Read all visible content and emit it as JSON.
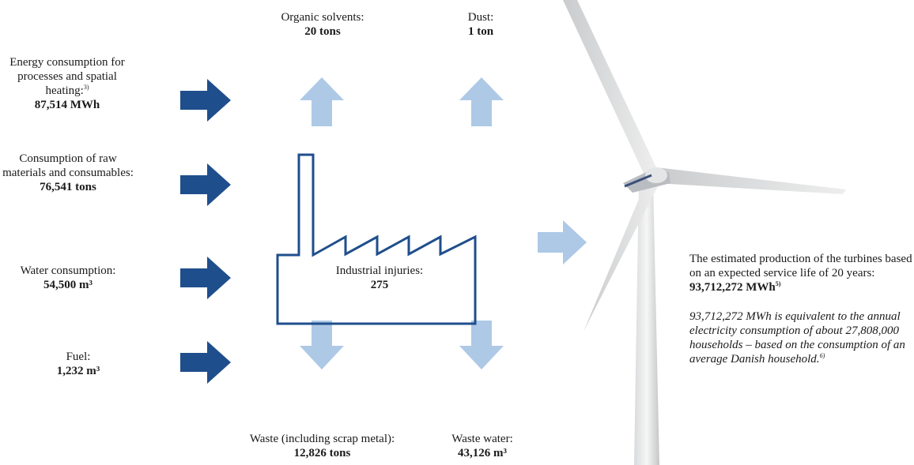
{
  "inputs": [
    {
      "label": "Energy consumption for processes and spatial heating:",
      "footnote": "3)",
      "value": "87,514 MWh"
    },
    {
      "label": "Consumption of raw materials and consumables:",
      "value": "76,541 tons"
    },
    {
      "label": "Water consumption:",
      "value": "54,500 m³"
    },
    {
      "label": "Fuel:",
      "value": "1,232 m³"
    }
  ],
  "emissions": [
    {
      "label": "Organic solvents:",
      "value": "20 tons"
    },
    {
      "label": "Dust:",
      "value": "1 ton"
    }
  ],
  "waste": [
    {
      "label": "Waste (including scrap metal):",
      "value": "12,826 tons"
    },
    {
      "label": "Waste water:",
      "value": "43,126 m³"
    }
  ],
  "center": {
    "label": "Industrial injuries:",
    "value": "275"
  },
  "output": {
    "text": "The estimated production of the turbines based on an expected service life of 20 years:",
    "value": "93,712,272 MWh",
    "footnote": "5)"
  },
  "note": {
    "text": "93,712,272 MWh is equivalent to the annual electricity consumption of about 27,808,000 households – based on the consumption of an average Danish household.",
    "footnote": "6)"
  }
}
